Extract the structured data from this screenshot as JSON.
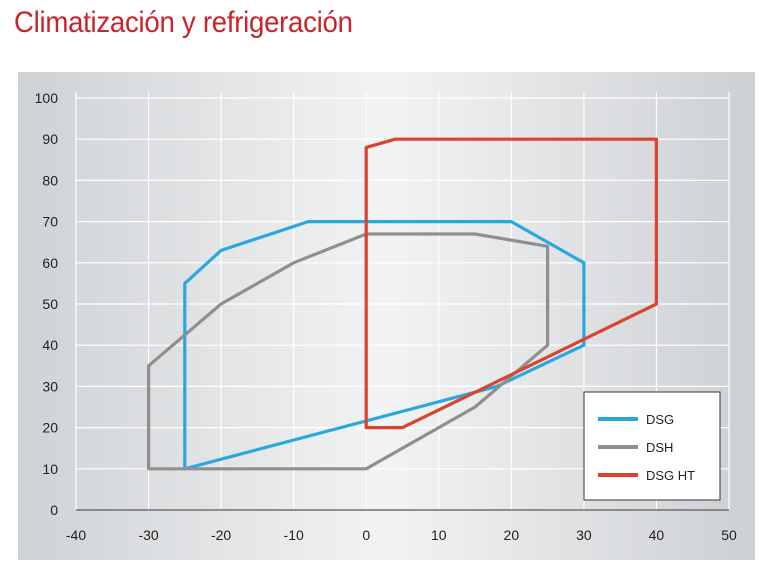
{
  "page": {
    "title": "Climatización y refrigeración"
  },
  "colors": {
    "title": "#c8242b",
    "DSG": "#29a8e0",
    "DSH": "#8f8f8f",
    "DSG HT": "#d9432f"
  },
  "chart_data": {
    "type": "line",
    "title": "",
    "xlabel": "",
    "ylabel": "",
    "xlim": [
      -40,
      50
    ],
    "ylim": [
      0,
      100
    ],
    "x_ticks": [
      -40,
      -30,
      -20,
      -10,
      0,
      10,
      20,
      30,
      40,
      50
    ],
    "y_ticks": [
      0,
      10,
      20,
      30,
      40,
      50,
      60,
      70,
      80,
      90,
      100
    ],
    "grid": true,
    "legend_position": "bottom-right",
    "series": [
      {
        "name": "DSG",
        "color": "#29a8e0",
        "x": [
          -25,
          -25,
          -20,
          -8,
          20,
          30,
          30,
          18,
          -25
        ],
        "y": [
          10,
          55,
          63,
          70,
          70,
          60,
          40,
          30,
          10
        ]
      },
      {
        "name": "DSH",
        "color": "#8f8f8f",
        "x": [
          -30,
          -30,
          -20,
          -10,
          0,
          15,
          25,
          25,
          15,
          0,
          -30
        ],
        "y": [
          10,
          35,
          50,
          60,
          67,
          67,
          64,
          40,
          25,
          10,
          10
        ]
      },
      {
        "name": "DSG HT",
        "color": "#d9432f",
        "x": [
          0,
          0,
          4,
          40,
          40,
          5,
          0
        ],
        "y": [
          20,
          88,
          90,
          90,
          50,
          20,
          20
        ]
      }
    ]
  }
}
